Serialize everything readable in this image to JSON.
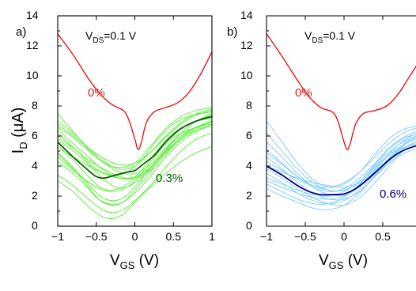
{
  "chart_data": [
    {
      "type": "line",
      "panel_label": "a)",
      "condition": {
        "main": "V",
        "sub": "DS",
        "rest": "=0.1 V"
      },
      "ylabel": {
        "main": "I",
        "sub": "D",
        "rest": " (μA)"
      },
      "xlabel": {
        "main": "V",
        "sub": "GS",
        "rest": " (V)"
      },
      "xlim": [
        -1,
        1
      ],
      "ylim": [
        0,
        14
      ],
      "x_ticks": [
        "−1",
        "−0.5",
        "0",
        "0.5",
        "1"
      ],
      "y_ticks": [
        "0",
        "2",
        "4",
        "6",
        "8",
        "10",
        "12",
        "14"
      ],
      "grid": false,
      "colors": {
        "reference": "#e41a1c",
        "mean": "#006400",
        "devices": "#66ee44"
      },
      "series": [
        {
          "name": "0%",
          "label_color": "#e41a1c",
          "x": [
            -1,
            -0.8,
            -0.6,
            -0.45,
            -0.3,
            -0.15,
            -0.08,
            0,
            0.04,
            0.08,
            0.15,
            0.25,
            0.4,
            0.55,
            0.7,
            0.85,
            1
          ],
          "y": [
            12.8,
            11.4,
            9.8,
            8.8,
            8.1,
            7.7,
            7.1,
            5.8,
            5.1,
            5.5,
            6.9,
            7.6,
            7.9,
            8.2,
            8.9,
            10.1,
            11.6
          ]
        },
        {
          "name": "0.3%",
          "label_color": "#006400",
          "x": [
            -1,
            -0.8,
            -0.6,
            -0.5,
            -0.4,
            -0.25,
            -0.1,
            0,
            0.1,
            0.25,
            0.4,
            0.6,
            0.8,
            1
          ],
          "y": [
            5.6,
            4.6,
            3.7,
            3.3,
            3.2,
            3.4,
            3.6,
            3.7,
            4.1,
            4.7,
            5.6,
            6.5,
            7.0,
            7.3
          ]
        }
      ],
      "device_curves": [
        {
          "x": [
            -1,
            -0.75,
            -0.5,
            -0.3,
            -0.1,
            0.1,
            0.3,
            0.5,
            0.75,
            1
          ],
          "y": [
            6.2,
            5.0,
            3.8,
            3.4,
            3.6,
            4.5,
            5.8,
            6.8,
            7.4,
            7.6
          ]
        },
        {
          "x": [
            -1,
            -0.8,
            -0.6,
            -0.4,
            -0.2,
            0,
            0.2,
            0.4,
            0.6,
            0.8,
            1
          ],
          "y": [
            7.5,
            6.3,
            5.1,
            4.2,
            3.9,
            4.2,
            5.3,
            6.5,
            7.3,
            7.7,
            7.9
          ]
        },
        {
          "x": [
            -1,
            -0.8,
            -0.6,
            -0.45,
            -0.3,
            -0.1,
            0.1,
            0.3,
            0.5,
            0.75,
            1
          ],
          "y": [
            5.4,
            4.4,
            3.3,
            2.6,
            2.4,
            2.8,
            3.8,
            5.1,
            6.2,
            6.9,
            7.2
          ]
        },
        {
          "x": [
            -1,
            -0.8,
            -0.6,
            -0.4,
            -0.2,
            0,
            0.2,
            0.4,
            0.6,
            0.8,
            1
          ],
          "y": [
            6.0,
            5.2,
            4.4,
            3.8,
            3.3,
            3.2,
            3.7,
            4.8,
            5.9,
            6.6,
            7.0
          ]
        },
        {
          "x": [
            -1,
            -0.75,
            -0.5,
            -0.3,
            -0.1,
            0.1,
            0.3,
            0.5,
            0.75,
            1
          ],
          "y": [
            4.6,
            3.5,
            2.6,
            2.3,
            2.6,
            3.6,
            4.9,
            5.9,
            6.5,
            6.8
          ]
        },
        {
          "x": [
            -1,
            -0.8,
            -0.6,
            -0.4,
            -0.2,
            0,
            0.2,
            0.4,
            0.6,
            0.8,
            1
          ],
          "y": [
            7.0,
            6.2,
            5.2,
            4.3,
            3.8,
            4.0,
            4.9,
            6.0,
            6.9,
            7.5,
            7.8
          ]
        },
        {
          "x": [
            -1,
            -0.8,
            -0.6,
            -0.45,
            -0.3,
            -0.15,
            0,
            0.2,
            0.4,
            0.6,
            0.8,
            1
          ],
          "y": [
            4.9,
            3.9,
            2.8,
            2.0,
            1.7,
            1.9,
            2.6,
            3.9,
            5.0,
            5.8,
            6.4,
            6.7
          ]
        },
        {
          "x": [
            -1,
            -0.8,
            -0.6,
            -0.4,
            -0.2,
            0,
            0.2,
            0.4,
            0.6,
            0.8,
            1
          ],
          "y": [
            6.4,
            5.5,
            4.6,
            3.7,
            3.2,
            3.2,
            3.9,
            5.1,
            6.2,
            7.0,
            7.4
          ]
        },
        {
          "x": [
            -1,
            -0.8,
            -0.6,
            -0.4,
            -0.25,
            -0.1,
            0.1,
            0.3,
            0.5,
            0.75,
            1
          ],
          "y": [
            5.8,
            5.0,
            4.1,
            3.1,
            2.6,
            2.6,
            3.3,
            4.4,
            5.6,
            6.5,
            6.9
          ]
        },
        {
          "x": [
            -1,
            -0.8,
            -0.6,
            -0.4,
            -0.2,
            0,
            0.2,
            0.4,
            0.6,
            0.8,
            1
          ],
          "y": [
            6.8,
            6.0,
            5.2,
            4.5,
            4.1,
            4.2,
            4.9,
            5.9,
            6.8,
            7.4,
            7.7
          ]
        },
        {
          "x": [
            -1,
            -0.8,
            -0.6,
            -0.5,
            -0.35,
            -0.2,
            0,
            0.2,
            0.4,
            0.6,
            0.8,
            1
          ],
          "y": [
            4.3,
            3.5,
            2.5,
            1.9,
            1.5,
            1.5,
            2.2,
            3.3,
            4.6,
            5.6,
            6.3,
            6.7
          ]
        },
        {
          "x": [
            -1,
            -0.8,
            -0.6,
            -0.45,
            -0.3,
            -0.15,
            0,
            0.2,
            0.4,
            0.6,
            0.8,
            1
          ],
          "y": [
            3.4,
            2.7,
            1.8,
            1.2,
            0.9,
            1.1,
            1.7,
            2.7,
            3.9,
            5.0,
            5.8,
            6.2
          ]
        },
        {
          "x": [
            -1,
            -0.8,
            -0.6,
            -0.45,
            -0.3,
            -0.15,
            0,
            0.2,
            0.4,
            0.6,
            0.8,
            1
          ],
          "y": [
            3.0,
            2.3,
            1.3,
            0.7,
            0.5,
            0.8,
            1.6,
            2.6,
            3.5,
            4.3,
            4.9,
            5.3
          ]
        },
        {
          "x": [
            -1,
            -0.8,
            -0.6,
            -0.45,
            -0.3,
            -0.15,
            0,
            0.2,
            0.4,
            0.6,
            0.8,
            1
          ],
          "y": [
            4.8,
            3.8,
            2.6,
            1.7,
            1.4,
            1.6,
            2.4,
            3.6,
            4.8,
            5.8,
            6.5,
            7.0
          ]
        },
        {
          "x": [
            -1,
            -0.8,
            -0.6,
            -0.4,
            -0.2,
            0,
            0.2,
            0.4,
            0.6,
            0.8,
            1
          ],
          "y": [
            5.2,
            4.6,
            4.0,
            3.5,
            3.2,
            3.3,
            3.9,
            4.9,
            5.9,
            6.6,
            7.0
          ]
        },
        {
          "x": [
            -1,
            -0.8,
            -0.6,
            -0.4,
            -0.2,
            0,
            0.2,
            0.4,
            0.6,
            0.8,
            1
          ],
          "y": [
            6.6,
            5.9,
            5.0,
            4.2,
            3.6,
            3.5,
            4.1,
            5.2,
            6.2,
            7.0,
            7.5
          ]
        }
      ]
    },
    {
      "type": "line",
      "panel_label": "b)",
      "condition": {
        "main": "V",
        "sub": "DS",
        "rest": "=0.1 V"
      },
      "xlabel": {
        "main": "V",
        "sub": "GS",
        "rest": " (V)"
      },
      "xlim": [
        -1,
        1
      ],
      "ylim": [
        0,
        14
      ],
      "x_ticks": [
        "−1",
        "−0.5",
        "0",
        "0.5"
      ],
      "y_ticks": [
        "0",
        "2",
        "4",
        "6",
        "8",
        "10",
        "12",
        "14"
      ],
      "grid": false,
      "colors": {
        "reference": "#e41a1c",
        "mean": "#000080",
        "devices": "#87cefa"
      },
      "series": [
        {
          "name": "0%",
          "label_color": "#e41a1c",
          "x": [
            -1,
            -0.8,
            -0.6,
            -0.45,
            -0.3,
            -0.15,
            -0.08,
            0,
            0.04,
            0.08,
            0.15,
            0.25,
            0.4,
            0.55,
            0.7,
            0.85,
            1
          ],
          "y": [
            12.8,
            11.3,
            9.7,
            8.6,
            7.9,
            7.6,
            7.0,
            5.6,
            5.1,
            5.5,
            6.8,
            7.5,
            7.7,
            8.0,
            8.8,
            10.0,
            11.2
          ]
        },
        {
          "name": "0.6%",
          "label_color": "#000080",
          "x": [
            -1,
            -0.8,
            -0.6,
            -0.45,
            -0.3,
            -0.15,
            0,
            0.15,
            0.3,
            0.45,
            0.6,
            0.75,
            0.9,
            1
          ],
          "y": [
            4.0,
            3.4,
            2.7,
            2.3,
            2.1,
            2.1,
            2.15,
            2.5,
            3.1,
            3.8,
            4.5,
            5.0,
            5.3,
            5.4
          ]
        }
      ],
      "device_curves": [
        {
          "x": [
            -1,
            -0.8,
            -0.6,
            -0.4,
            -0.2,
            0,
            0.2,
            0.4,
            0.6,
            0.8,
            1
          ],
          "y": [
            7.0,
            5.6,
            4.2,
            3.1,
            2.6,
            2.8,
            3.6,
            4.8,
            5.9,
            6.5,
            6.7
          ]
        },
        {
          "x": [
            -1,
            -0.8,
            -0.6,
            -0.4,
            -0.2,
            0,
            0.2,
            0.4,
            0.6,
            0.8,
            1
          ],
          "y": [
            5.6,
            4.6,
            3.5,
            2.6,
            2.1,
            2.1,
            2.7,
            3.7,
            4.9,
            5.8,
            6.3
          ]
        },
        {
          "x": [
            -1,
            -0.8,
            -0.6,
            -0.4,
            -0.2,
            0,
            0.2,
            0.4,
            0.6,
            0.8,
            1
          ],
          "y": [
            4.6,
            3.8,
            2.9,
            2.2,
            1.8,
            1.8,
            2.3,
            3.3,
            4.5,
            5.5,
            6.1
          ]
        },
        {
          "x": [
            -1,
            -0.8,
            -0.6,
            -0.4,
            -0.2,
            0,
            0.2,
            0.4,
            0.6,
            0.8,
            1
          ],
          "y": [
            3.8,
            3.2,
            2.5,
            1.9,
            1.5,
            1.4,
            1.9,
            2.9,
            4.1,
            5.2,
            5.8
          ]
        },
        {
          "x": [
            -1,
            -0.8,
            -0.6,
            -0.4,
            -0.2,
            0,
            0.2,
            0.4,
            0.6,
            0.8,
            1
          ],
          "y": [
            3.2,
            2.8,
            2.4,
            2.1,
            2.0,
            2.3,
            3.0,
            4.0,
            5.0,
            5.7,
            6.0
          ]
        },
        {
          "x": [
            -1,
            -0.8,
            -0.6,
            -0.4,
            -0.2,
            0,
            0.2,
            0.4,
            0.6,
            0.8,
            1
          ],
          "y": [
            2.8,
            2.3,
            1.8,
            1.5,
            1.5,
            1.9,
            2.8,
            3.9,
            4.8,
            5.3,
            5.5
          ]
        },
        {
          "x": [
            -1,
            -0.8,
            -0.6,
            -0.4,
            -0.2,
            0,
            0.2,
            0.4,
            0.6,
            0.8,
            1
          ],
          "y": [
            4.3,
            3.7,
            3.1,
            2.7,
            2.6,
            2.9,
            3.6,
            4.6,
            5.6,
            6.3,
            6.6
          ]
        },
        {
          "x": [
            -1,
            -0.8,
            -0.6,
            -0.4,
            -0.2,
            0,
            0.2,
            0.4,
            0.6,
            0.8,
            1
          ],
          "y": [
            3.5,
            2.9,
            2.2,
            1.7,
            1.5,
            1.7,
            2.4,
            3.4,
            4.4,
            5.1,
            5.4
          ]
        },
        {
          "x": [
            -1,
            -0.8,
            -0.6,
            -0.4,
            -0.2,
            0,
            0.2,
            0.4,
            0.6,
            0.8,
            1
          ],
          "y": [
            5.1,
            4.2,
            3.3,
            2.6,
            2.3,
            2.5,
            3.2,
            4.2,
            5.3,
            6.0,
            6.4
          ]
        },
        {
          "x": [
            -1,
            -0.8,
            -0.6,
            -0.4,
            -0.2,
            0,
            0.2,
            0.4,
            0.6,
            0.8,
            1
          ],
          "y": [
            2.5,
            2.0,
            1.6,
            1.2,
            1.1,
            1.4,
            2.2,
            3.3,
            4.3,
            4.9,
            5.2
          ]
        },
        {
          "x": [
            -1,
            -0.8,
            -0.6,
            -0.4,
            -0.2,
            0,
            0.2,
            0.4,
            0.6,
            0.8,
            1
          ],
          "y": [
            4.0,
            3.6,
            3.2,
            2.9,
            2.7,
            2.6,
            2.9,
            3.6,
            4.6,
            5.6,
            6.2
          ]
        },
        {
          "x": [
            -1,
            -0.8,
            -0.6,
            -0.4,
            -0.2,
            0,
            0.2,
            0.4,
            0.6,
            0.8,
            1
          ],
          "y": [
            6.2,
            5.0,
            3.8,
            2.9,
            2.4,
            2.4,
            3.0,
            4.1,
            5.2,
            5.9,
            6.2
          ]
        },
        {
          "x": [
            -1,
            -0.8,
            -0.6,
            -0.4,
            -0.2,
            0,
            0.2,
            0.4,
            0.6,
            0.8,
            1
          ],
          "y": [
            3.0,
            2.6,
            2.2,
            1.9,
            1.8,
            2.0,
            2.6,
            3.5,
            4.5,
            5.3,
            5.7
          ]
        },
        {
          "x": [
            -1,
            -0.8,
            -0.6,
            -0.4,
            -0.2,
            0,
            0.2,
            0.4,
            0.6,
            0.8,
            1
          ],
          "y": [
            4.9,
            4.1,
            3.3,
            2.7,
            2.4,
            2.4,
            2.9,
            3.8,
            4.8,
            5.5,
            5.9
          ]
        }
      ]
    }
  ]
}
